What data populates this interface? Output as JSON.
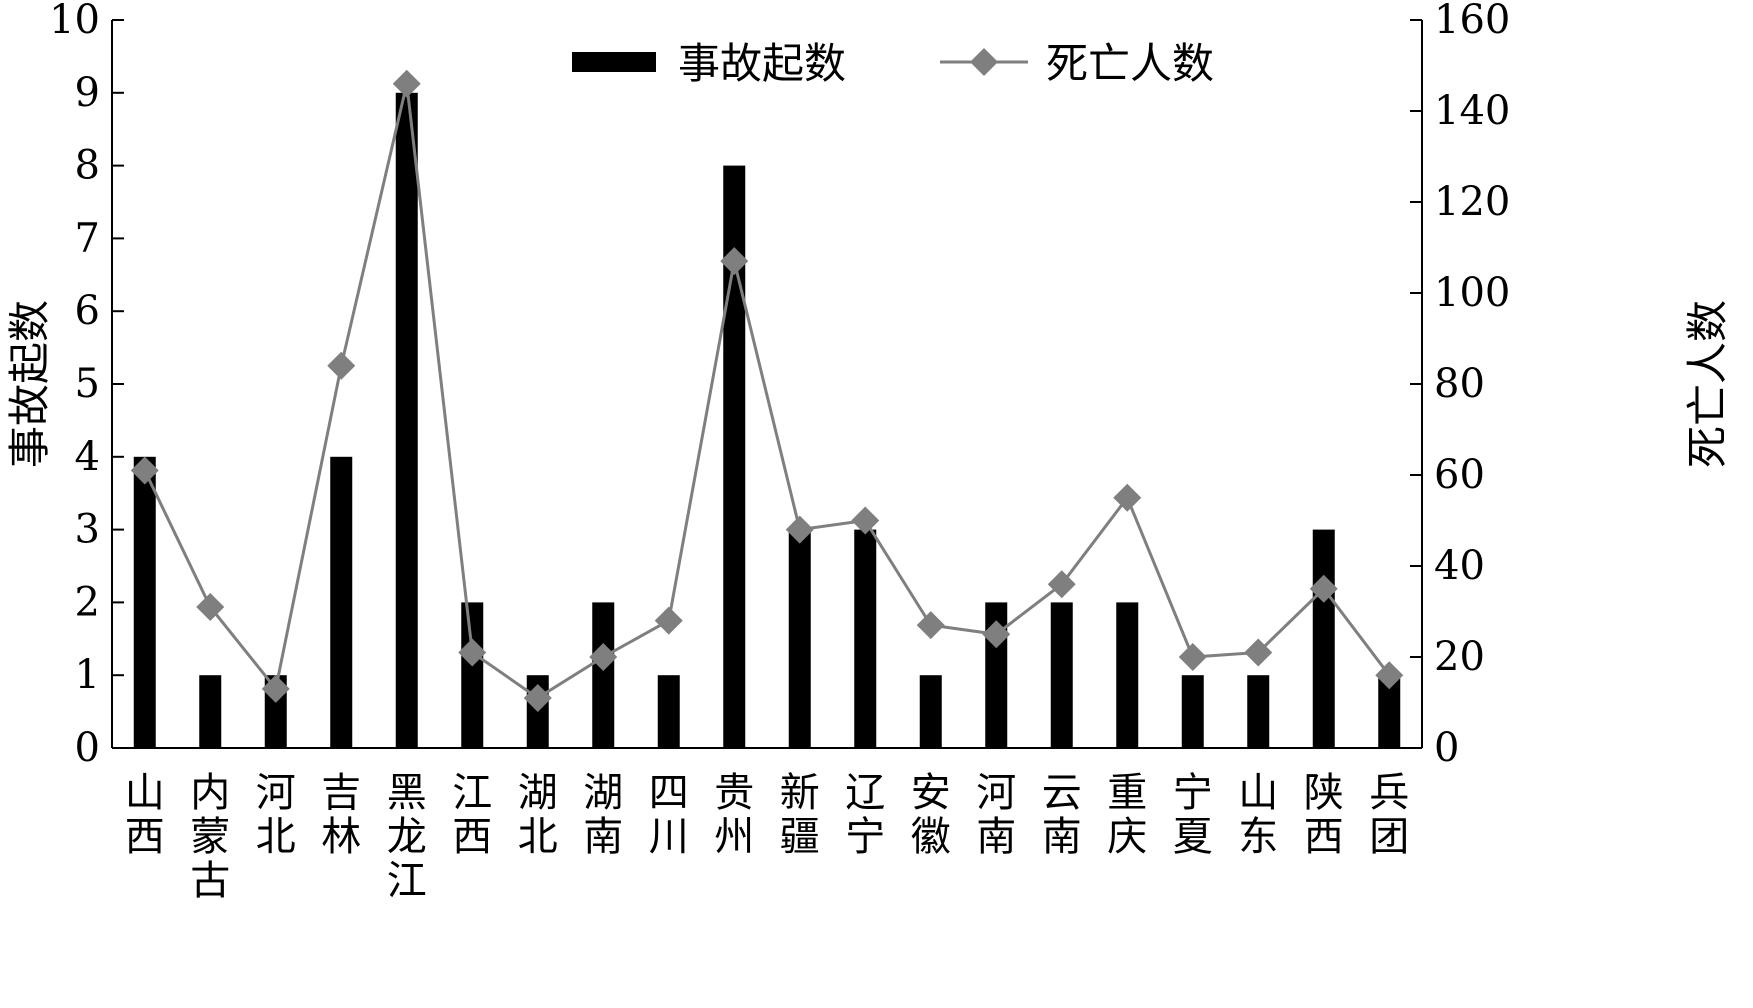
{
  "chart_data": {
    "type": "bar+line",
    "categories": [
      "山西",
      "内蒙古",
      "河北",
      "吉林",
      "黑龙江",
      "江西",
      "湖北",
      "湖南",
      "四川",
      "贵州",
      "新疆",
      "辽宁",
      "安徽",
      "河南",
      "云南",
      "重庆",
      "宁夏",
      "山东",
      "陕西",
      "兵团"
    ],
    "series": [
      {
        "name": "事故起数",
        "kind": "bar",
        "axis": "left",
        "color": "#000000",
        "values": [
          4,
          1,
          1,
          4,
          9,
          2,
          1,
          2,
          1,
          8,
          3,
          3,
          1,
          2,
          2,
          2,
          1,
          1,
          3,
          1
        ]
      },
      {
        "name": "死亡人数",
        "kind": "line",
        "axis": "right",
        "color": "#7f7f7f",
        "marker": "diamond",
        "values": [
          61,
          31,
          13,
          84,
          146,
          21,
          11,
          20,
          28,
          107,
          48,
          50,
          27,
          25,
          36,
          55,
          20,
          21,
          35,
          16
        ]
      }
    ],
    "ylabel": "事故起数",
    "y2label": "死亡人数",
    "ylim": [
      0,
      10
    ],
    "y2lim": [
      0,
      160
    ],
    "yticks": [
      "0",
      "1",
      "2",
      "3",
      "4",
      "5",
      "6",
      "7",
      "8",
      "9",
      "10"
    ],
    "y2ticks": [
      "0",
      "20",
      "40",
      "60",
      "80",
      "100",
      "120",
      "140",
      "160"
    ],
    "legend_position": "top-center",
    "grid": false
  }
}
